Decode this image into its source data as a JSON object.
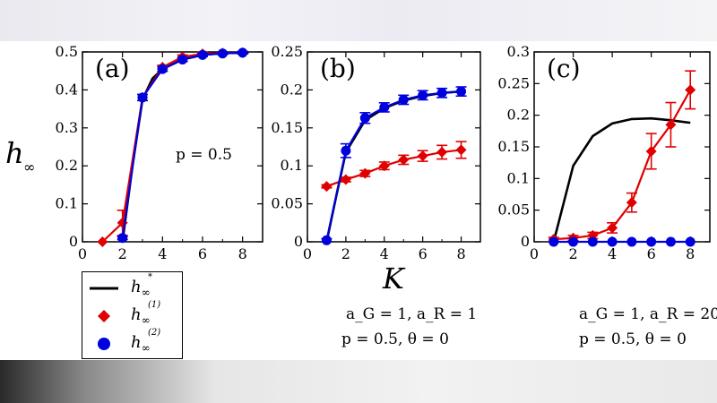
{
  "figure": {
    "y_axis_label": "h",
    "y_axis_label_sub": "∞",
    "x_axis_label": "K"
  },
  "legend": [
    {
      "label": "h",
      "sub": "∞",
      "sup": "*",
      "color": "#000000",
      "marker": "line"
    },
    {
      "label": "h",
      "sub": "∞",
      "sup": "(1)",
      "color": "#e00000",
      "marker": "diamond"
    },
    {
      "label": "h",
      "sub": "∞",
      "sup": "(2)",
      "color": "#0000dd",
      "marker": "circle"
    }
  ],
  "notes": {
    "a_p": "p = 0.5",
    "b_line1": "a_G = 1,  a_R = 1",
    "b_line2": "p = 0.5,  θ = 0",
    "c_line1": "a_G = 1,  a_R = 20",
    "c_line2": "p = 0.5,  θ = 0"
  },
  "chart_data": [
    {
      "type": "line",
      "panel_label": "(a)",
      "xlim": [
        0,
        9
      ],
      "ylim": [
        0,
        0.5
      ],
      "xticks": [
        0,
        2,
        4,
        6,
        8
      ],
      "yticks": [
        0,
        0.1,
        0.2,
        0.3,
        0.4,
        0.5
      ],
      "ytick_labels": [
        "0",
        "0.1",
        "0.2",
        "0.3",
        "0.4",
        "0.5"
      ],
      "series": [
        {
          "key": "h_star",
          "color": "#000000",
          "style": "line",
          "x": [
            2,
            2.5,
            3,
            3.5,
            4,
            5,
            6,
            7,
            8,
            8.3
          ],
          "y": [
            0,
            0.2,
            0.375,
            0.43,
            0.455,
            0.48,
            0.492,
            0.497,
            0.498,
            0.498
          ]
        },
        {
          "key": "h1",
          "color": "#e00000",
          "style": "diamond",
          "x": [
            1,
            2,
            3,
            4,
            5,
            6,
            7,
            8
          ],
          "y": [
            0,
            0.05,
            0.38,
            0.46,
            0.487,
            0.495,
            0.497,
            0.498
          ],
          "err": [
            0,
            0.033,
            0.008,
            0.005,
            0.005,
            0.004,
            0.003,
            0.003
          ]
        },
        {
          "key": "h2",
          "color": "#0000dd",
          "style": "circle",
          "x": [
            2,
            3,
            4,
            5,
            6,
            7,
            8
          ],
          "y": [
            0.01,
            0.38,
            0.455,
            0.48,
            0.492,
            0.496,
            0.498
          ],
          "err": [
            0.004,
            0.008,
            0.006,
            0.005,
            0.004,
            0.003,
            0.003
          ]
        }
      ]
    },
    {
      "type": "line",
      "panel_label": "(b)",
      "xlim": [
        0,
        9
      ],
      "ylim": [
        0,
        0.25
      ],
      "xticks": [
        0,
        2,
        4,
        6,
        8
      ],
      "yticks": [
        0,
        0.05,
        0.1,
        0.15,
        0.2,
        0.25
      ],
      "ytick_labels": [
        "0",
        "0.05",
        "0.1",
        "0.15",
        "0.2",
        "0.25"
      ],
      "series": [
        {
          "key": "h_star",
          "color": "#000000",
          "style": "line",
          "x": [
            1,
            1.5,
            2,
            3,
            4,
            5,
            6,
            7,
            8
          ],
          "y": [
            0,
            0.06,
            0.118,
            0.16,
            0.176,
            0.186,
            0.192,
            0.196,
            0.198
          ]
        },
        {
          "key": "h1",
          "color": "#e00000",
          "style": "diamond",
          "x": [
            1,
            2,
            3,
            4,
            5,
            6,
            7,
            8
          ],
          "y": [
            0.073,
            0.082,
            0.09,
            0.1,
            0.108,
            0.113,
            0.118,
            0.121
          ],
          "err": [
            0.002,
            0.003,
            0.004,
            0.005,
            0.006,
            0.007,
            0.009,
            0.011
          ]
        },
        {
          "key": "h2",
          "color": "#0000dd",
          "style": "circle",
          "x": [
            1,
            2,
            3,
            4,
            5,
            6,
            7,
            8
          ],
          "y": [
            0.002,
            0.12,
            0.163,
            0.177,
            0.187,
            0.193,
            0.196,
            0.198
          ],
          "err": [
            0.002,
            0.009,
            0.007,
            0.006,
            0.006,
            0.006,
            0.006,
            0.006
          ]
        }
      ]
    },
    {
      "type": "line",
      "panel_label": "(c)",
      "xlim": [
        0,
        9
      ],
      "ylim": [
        0,
        0.3
      ],
      "xticks": [
        0,
        2,
        4,
        6,
        8
      ],
      "yticks": [
        0,
        0.05,
        0.1,
        0.15,
        0.2,
        0.25,
        0.3
      ],
      "ytick_labels": [
        "0",
        "0.05",
        "0.1",
        "0.15",
        "0.2",
        "0.25",
        "0.3"
      ],
      "series": [
        {
          "key": "h_star",
          "color": "#000000",
          "style": "line",
          "x": [
            1,
            1.5,
            2,
            3,
            4,
            5,
            6,
            7,
            8
          ],
          "y": [
            0,
            0.06,
            0.12,
            0.167,
            0.187,
            0.194,
            0.195,
            0.192,
            0.188
          ]
        },
        {
          "key": "h1",
          "color": "#e00000",
          "style": "diamond",
          "x": [
            1,
            2,
            3,
            4,
            5,
            6,
            7,
            8
          ],
          "y": [
            0.004,
            0.006,
            0.01,
            0.022,
            0.062,
            0.143,
            0.185,
            0.24
          ],
          "err": [
            0.003,
            0.004,
            0.005,
            0.008,
            0.015,
            0.028,
            0.035,
            0.03
          ]
        },
        {
          "key": "h2",
          "color": "#0000dd",
          "style": "circle",
          "x": [
            1,
            2,
            3,
            4,
            5,
            6,
            7,
            8
          ],
          "y": [
            0,
            0,
            0,
            0,
            0,
            0,
            0,
            0
          ],
          "err": [
            0,
            0,
            0,
            0,
            0,
            0,
            0,
            0
          ]
        }
      ]
    }
  ]
}
